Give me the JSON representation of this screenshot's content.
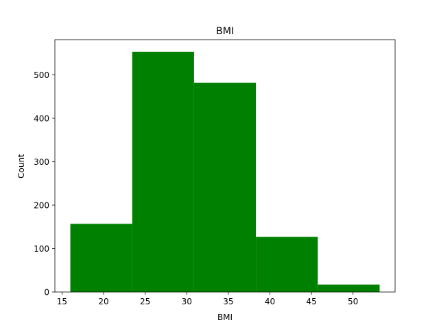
{
  "chart_data": {
    "type": "bar",
    "title": "BMI",
    "xlabel": "BMI",
    "ylabel": "Count",
    "histogram": true,
    "bin_edges": [
      16.0,
      23.44,
      30.88,
      38.32,
      45.76,
      53.2
    ],
    "counts": [
      157,
      553,
      482,
      127,
      17
    ],
    "bar_color": "#008000",
    "xlim": [
      14.14,
      55.06
    ],
    "ylim": [
      0,
      581
    ],
    "xticks": [
      15,
      20,
      25,
      30,
      35,
      40,
      45,
      50
    ],
    "yticks": [
      0,
      100,
      200,
      300,
      400,
      500
    ],
    "grid": false,
    "legend": "none"
  }
}
